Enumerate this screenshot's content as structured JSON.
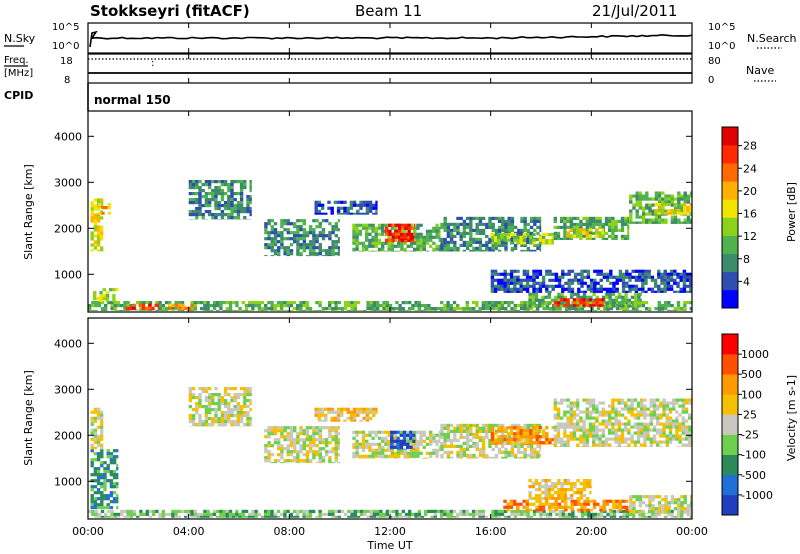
{
  "header": {
    "station": "Stokkseyri (fitACF)",
    "beam": "Beam 11",
    "date": "21/Jul/2011"
  },
  "noise_panel": {
    "left_label": "N.Sky",
    "right_label": "N.Search",
    "left_ticks": [
      "10^5",
      "10^0"
    ],
    "right_ticks": [
      "10^5",
      "10^0"
    ]
  },
  "freq_panel": {
    "left_label_line1": "Freq.",
    "left_label_line2": "[MHz]",
    "right_label": "Nave",
    "left_ticks": [
      "18",
      "8"
    ],
    "right_ticks": [
      "80",
      "0"
    ]
  },
  "cpid": {
    "label": "CPID",
    "mode": "normal 150"
  },
  "chart_data": [
    {
      "type": "heatmap",
      "name": "Power",
      "ylabel": "Slant Range [km]",
      "colorbar_label": "Power [dB]",
      "ylim": [
        180,
        4550
      ],
      "xlim": [
        0,
        24
      ],
      "y_ticks": [
        1000,
        2000,
        3000,
        4000
      ],
      "colorbar_ticks": [
        "28",
        "24",
        "20",
        "16",
        "12",
        "8",
        "4"
      ],
      "colors": [
        "#0000ff",
        "#2f4fb0",
        "#3e8a6c",
        "#4fb24f",
        "#8cd21a",
        "#f2e400",
        "#ffb000",
        "#ff6a00",
        "#ff2a00",
        "#e00000"
      ],
      "regions": [
        {
          "t0": 0.0,
          "t1": 24.0,
          "r0": 210,
          "r1": 420,
          "level": 3
        },
        {
          "t0": 0.2,
          "t1": 1.2,
          "r0": 400,
          "r1": 700,
          "level": 4
        },
        {
          "t0": 0.1,
          "t1": 0.6,
          "r0": 1500,
          "r1": 2650,
          "level": 5
        },
        {
          "t0": 0.4,
          "t1": 0.9,
          "r0": 2300,
          "r1": 2550,
          "level": 6
        },
        {
          "t0": 1.5,
          "t1": 2.8,
          "r0": 220,
          "r1": 360,
          "level": 8
        },
        {
          "t0": 3.2,
          "t1": 4.2,
          "r0": 220,
          "r1": 360,
          "level": 6
        },
        {
          "t0": 4.0,
          "t1": 6.5,
          "r0": 2200,
          "r1": 3050,
          "level": 2
        },
        {
          "t0": 7.0,
          "t1": 10.0,
          "r0": 1400,
          "r1": 2200,
          "level": 2
        },
        {
          "t0": 9.0,
          "t1": 11.5,
          "r0": 2300,
          "r1": 2600,
          "level": 1
        },
        {
          "t0": 10.5,
          "t1": 14.0,
          "r0": 1500,
          "r1": 2100,
          "level": 3
        },
        {
          "t0": 11.8,
          "t1": 13.0,
          "r0": 1700,
          "r1": 2100,
          "level": 8
        },
        {
          "t0": 12.4,
          "t1": 12.9,
          "r0": 1750,
          "r1": 1900,
          "level": 9
        },
        {
          "t0": 14.0,
          "t1": 18.0,
          "r0": 1500,
          "r1": 2250,
          "level": 2
        },
        {
          "t0": 16.0,
          "t1": 18.5,
          "r0": 1650,
          "r1": 1900,
          "level": 4
        },
        {
          "t0": 18.5,
          "t1": 21.5,
          "r0": 1750,
          "r1": 2250,
          "level": 3
        },
        {
          "t0": 19.0,
          "t1": 20.5,
          "r0": 1800,
          "r1": 2000,
          "level": 5
        },
        {
          "t0": 21.5,
          "t1": 24.0,
          "r0": 2100,
          "r1": 2800,
          "level": 3
        },
        {
          "t0": 22.5,
          "t1": 24.0,
          "r0": 2300,
          "r1": 2550,
          "level": 5
        },
        {
          "t0": 17.5,
          "t1": 22.0,
          "r0": 280,
          "r1": 600,
          "level": 3
        },
        {
          "t0": 18.5,
          "t1": 20.5,
          "r0": 300,
          "r1": 480,
          "level": 8
        },
        {
          "t0": 16.0,
          "t1": 24.0,
          "r0": 600,
          "r1": 1100,
          "level": 1
        }
      ]
    },
    {
      "type": "heatmap",
      "name": "Velocity",
      "ylabel": "Slant Range [km]",
      "colorbar_label": "Velocity [m s-1]",
      "ylim": [
        180,
        4550
      ],
      "xlim": [
        0,
        24
      ],
      "y_ticks": [
        1000,
        2000,
        3000,
        4000
      ],
      "colorbar_ticks": [
        "1000",
        "500",
        "100",
        "25",
        "-25",
        "-100",
        "-500",
        "-1000"
      ],
      "colors": [
        "#1f3fbf",
        "#1f6fd6",
        "#2a8a5a",
        "#6fd04f",
        "#c8c8c0",
        "#f6c000",
        "#ff9a00",
        "#ff5000",
        "#ff0000"
      ],
      "regions": [
        {
          "t0": 0.0,
          "t1": 24.0,
          "r0": 210,
          "r1": 380,
          "level": 3
        },
        {
          "t0": 0.1,
          "t1": 1.2,
          "r0": 400,
          "r1": 1700,
          "level": 2
        },
        {
          "t0": 0.1,
          "t1": 0.6,
          "r0": 1700,
          "r1": 2600,
          "level": 4
        },
        {
          "t0": 4.0,
          "t1": 6.5,
          "r0": 2200,
          "r1": 3050,
          "level": 4
        },
        {
          "t0": 7.0,
          "t1": 10.0,
          "r0": 1400,
          "r1": 2200,
          "level": 4
        },
        {
          "t0": 9.0,
          "t1": 11.5,
          "r0": 2300,
          "r1": 2600,
          "level": 5
        },
        {
          "t0": 10.5,
          "t1": 14.0,
          "r0": 1500,
          "r1": 2100,
          "level": 4
        },
        {
          "t0": 12.0,
          "t1": 13.0,
          "r0": 1700,
          "r1": 2100,
          "level": 0
        },
        {
          "t0": 14.0,
          "t1": 18.0,
          "r0": 1500,
          "r1": 2250,
          "level": 4
        },
        {
          "t0": 16.0,
          "t1": 18.5,
          "r0": 1800,
          "r1": 2200,
          "level": 6
        },
        {
          "t0": 18.5,
          "t1": 24.0,
          "r0": 1750,
          "r1": 2800,
          "level": 4
        },
        {
          "t0": 16.5,
          "t1": 21.5,
          "r0": 350,
          "r1": 600,
          "level": 6
        },
        {
          "t0": 17.5,
          "t1": 20.0,
          "r0": 600,
          "r1": 1050,
          "level": 5
        },
        {
          "t0": 21.5,
          "t1": 24.0,
          "r0": 300,
          "r1": 700,
          "level": 4
        }
      ]
    }
  ],
  "time_axis": {
    "label": "Time UT",
    "ticks": [
      "00:00",
      "04:00",
      "08:00",
      "12:00",
      "16:00",
      "20:00",
      "00:00"
    ]
  }
}
